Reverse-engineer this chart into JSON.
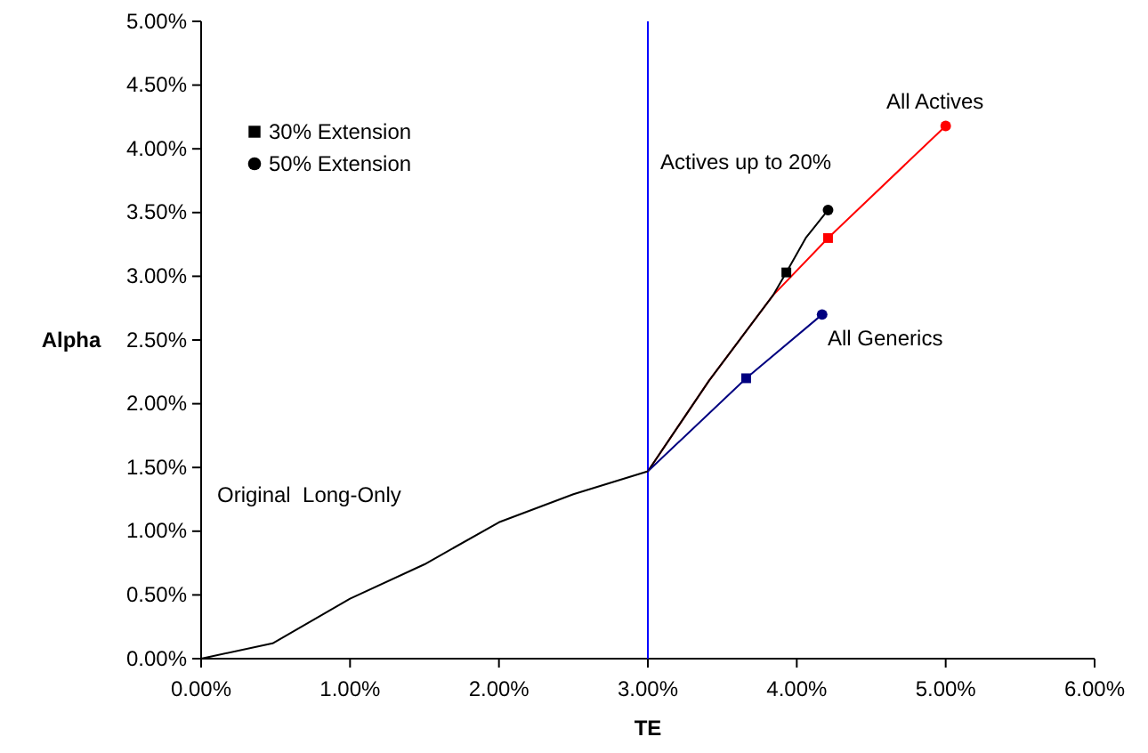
{
  "chart_data": {
    "type": "line",
    "xlabel": "TE",
    "ylabel": "Alpha",
    "xlim": [
      0,
      6
    ],
    "ylim": [
      0,
      5
    ],
    "xticks": [
      {
        "value": 0,
        "label": "0.00%"
      },
      {
        "value": 1,
        "label": "1.00%"
      },
      {
        "value": 2,
        "label": "2.00%"
      },
      {
        "value": 3,
        "label": "3.00%"
      },
      {
        "value": 4,
        "label": "4.00%"
      },
      {
        "value": 5,
        "label": "5.00%"
      },
      {
        "value": 6,
        "label": "6.00%"
      }
    ],
    "yticks": [
      {
        "value": 0,
        "label": "0.00%"
      },
      {
        "value": 0.5,
        "label": "0.50%"
      },
      {
        "value": 1,
        "label": "1.00%"
      },
      {
        "value": 1.5,
        "label": "1.50%"
      },
      {
        "value": 2,
        "label": "2.00%"
      },
      {
        "value": 2.5,
        "label": "2.50%"
      },
      {
        "value": 3,
        "label": "3.00%"
      },
      {
        "value": 3.5,
        "label": "3.50%"
      },
      {
        "value": 4,
        "label": "4.00%"
      },
      {
        "value": 4.5,
        "label": "4.50%"
      },
      {
        "value": 5,
        "label": "5.00%"
      }
    ],
    "grid": false,
    "legend": "top left",
    "series": [
      {
        "color": "#000000",
        "x": [
          0,
          0.48,
          1,
          1.5,
          2,
          2.5,
          3
        ],
        "values": [
          0,
          0.12,
          0.47,
          0.74,
          1.07,
          1.29,
          1.47
        ]
      },
      {
        "color": "#ff0000",
        "x": [
          3,
          3.41,
          3.84,
          4.21,
          5
        ],
        "values": [
          1.47,
          2.18,
          2.85,
          3.3,
          4.18
        ]
      },
      {
        "color": "#000000",
        "x": [
          3,
          3.41,
          3.84,
          3.93,
          4.06,
          4.21
        ],
        "values": [
          1.47,
          2.18,
          2.85,
          3.03,
          3.3,
          3.52
        ]
      },
      {
        "color": "#000080",
        "x": [
          3,
          3.66,
          4.17
        ],
        "values": [
          1.47,
          2.2,
          2.7
        ]
      },
      {
        "type": "scatter",
        "name": "30% Extension",
        "marker": "square",
        "color": "#000000",
        "x": [
          3.93,
          4.21,
          3.66
        ],
        "values": [
          3.03,
          3.3,
          2.2
        ],
        "colors": [
          "#000000",
          "#ff0000",
          "#000080"
        ]
      },
      {
        "type": "scatter",
        "name": "50% Extension",
        "marker": "circle",
        "color": "#000000",
        "x": [
          4.21,
          5,
          4.17
        ],
        "values": [
          3.52,
          4.18,
          2.7
        ],
        "colors": [
          "#000000",
          "#ff0000",
          "#000080"
        ]
      }
    ],
    "ref_lines": [
      {
        "axis": "x",
        "value": 3,
        "color": "#0000ff"
      }
    ],
    "annotations": [
      "Original  Long-Only",
      "Actives up to 20%",
      "All Actives",
      "All Generics"
    ]
  }
}
